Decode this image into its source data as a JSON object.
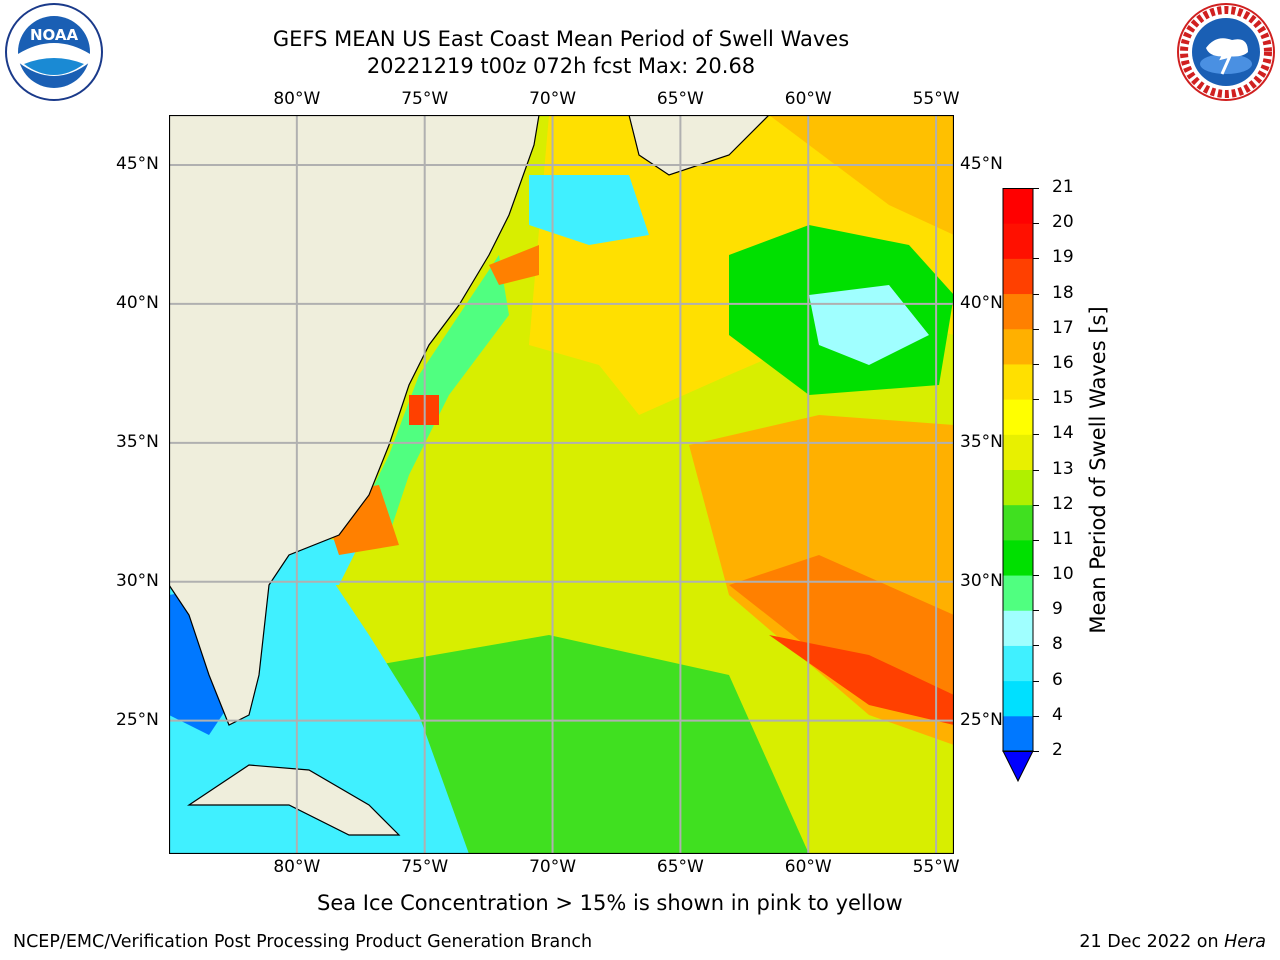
{
  "title": {
    "line1": "GEFS MEAN US East Coast Mean Period of Swell Waves",
    "line2": "20221219 t00z 072h fcst   Max: 20.68"
  },
  "logos": {
    "left": {
      "text": "NOAA",
      "ring_text": "NATIONAL OCEANIC AND ATMOSPHERIC ADMINISTRATION · U.S. DEPARTMENT OF COMMERCE"
    },
    "right": {
      "ring_text": "NATIONAL WEATHER SERVICE"
    }
  },
  "map": {
    "lon_labels": [
      "80°W",
      "75°W",
      "70°W",
      "65°W",
      "60°W",
      "55°W"
    ],
    "lat_labels": [
      "45°N",
      "40°N",
      "35°N",
      "30°N",
      "25°N"
    ],
    "lon_values": [
      -80,
      -75,
      -70,
      -65,
      -60,
      -55
    ],
    "lat_values": [
      45,
      40,
      35,
      30,
      25
    ],
    "lon_range": [
      -85,
      -54.3
    ],
    "lat_range": [
      20.2,
      46.8
    ],
    "colors": {
      "land": "#efeedc",
      "grid": "#b0b0b0",
      "coast": "#000000"
    }
  },
  "colorbar": {
    "label": "Mean Period of Swell Waves [s]",
    "ticks": [
      "2",
      "4",
      "6",
      "8",
      "9",
      "10",
      "11",
      "12",
      "13",
      "14",
      "15",
      "16",
      "17",
      "18",
      "19",
      "20",
      "21"
    ],
    "colors": [
      "#0000ff",
      "#0078ff",
      "#00e0ff",
      "#40f0ff",
      "#a0ffff",
      "#50ff80",
      "#00e000",
      "#40e020",
      "#b0f000",
      "#e8f000",
      "#ffff00",
      "#ffe000",
      "#ffb000",
      "#ff8000",
      "#ff4000",
      "#ff1000",
      "#ff0000"
    ],
    "extend_color": "#0000ff"
  },
  "notes": {
    "sea_ice": "Sea Ice Concentration > 15% is shown in pink to yellow"
  },
  "footer": {
    "left": "NCEP/EMC/Verification Post Processing Product Generation Branch",
    "right_date": "21 Dec 2022 on",
    "right_machine": "Hera"
  }
}
